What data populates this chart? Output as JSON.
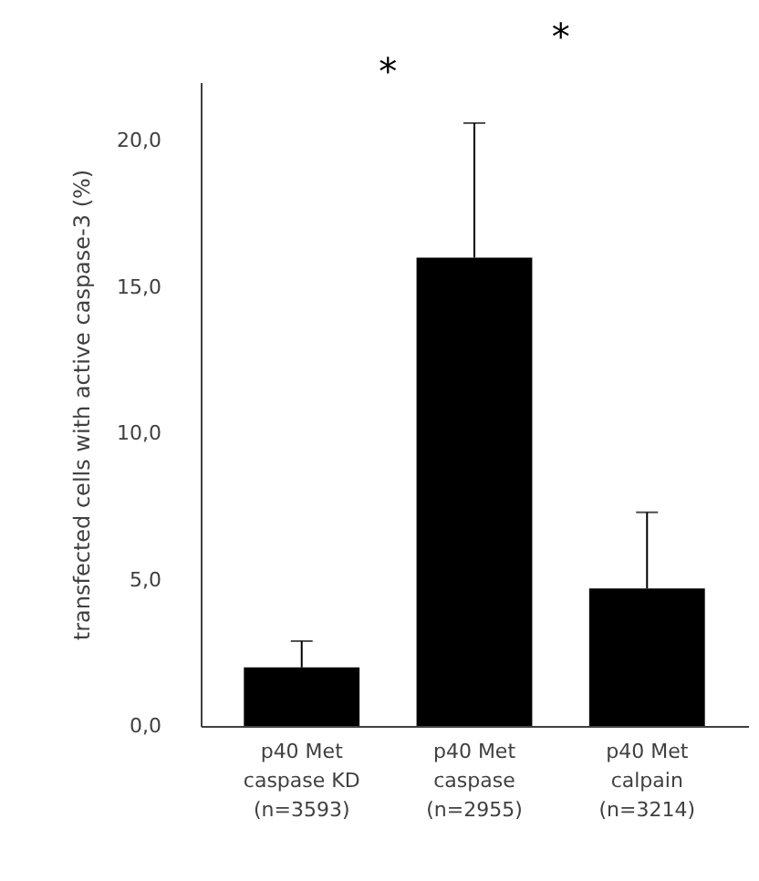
{
  "chart_data": {
    "type": "bar",
    "ylabel": "transfected cells with active caspase-3 (%)",
    "categories": [
      "p40 Met caspase KD (n=3593)",
      "p40 Met caspase (n=2955)",
      "p40 Met calpain (n=3214)"
    ],
    "values": [
      2.0,
      16.0,
      4.7
    ],
    "errors": [
      [
        2.0,
        2.9
      ],
      [
        16.0,
        20.6
      ],
      [
        4.7,
        7.3
      ]
    ],
    "color": "#000000",
    "ylim": [
      0,
      22
    ],
    "yticks": [
      {
        "value": 0,
        "label": "0,0"
      },
      {
        "value": 5,
        "label": "5,0"
      },
      {
        "value": 10,
        "label": "10,0"
      },
      {
        "value": 15,
        "label": "15,0"
      },
      {
        "value": 20,
        "label": "20,0"
      }
    ],
    "grid": false,
    "annotations": [
      "*",
      "*"
    ]
  }
}
